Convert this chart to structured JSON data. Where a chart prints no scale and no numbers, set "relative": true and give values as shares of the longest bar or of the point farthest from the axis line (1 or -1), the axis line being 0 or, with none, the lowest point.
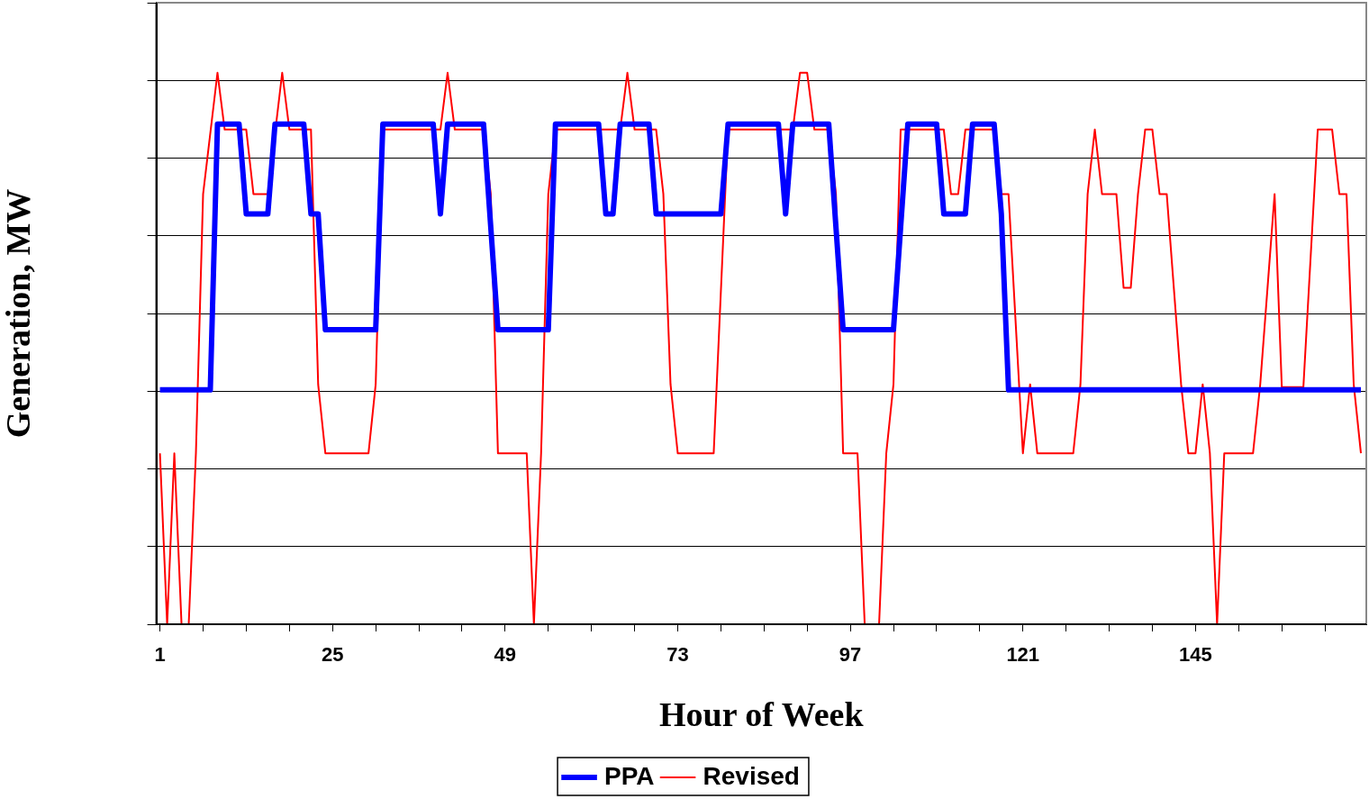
{
  "chart_data": {
    "type": "line",
    "xlabel": "Hour of Week",
    "ylabel": "Generation, MW",
    "relative": true,
    "grid": "y",
    "legend": "bottom",
    "tick_labels": "x",
    "marker": "none",
    "line_style": "solid",
    "xlim": [
      0.5,
      168.75
    ],
    "xticks": [
      1,
      {
        "value": 7,
        "label": null
      },
      {
        "value": 13,
        "label": null
      },
      {
        "value": 19,
        "label": null
      },
      25,
      {
        "value": 31,
        "label": null
      },
      {
        "value": 37,
        "label": null
      },
      {
        "value": 43,
        "label": null
      },
      49,
      {
        "value": 55,
        "label": null
      },
      {
        "value": 61,
        "label": null
      },
      {
        "value": 67,
        "label": null
      },
      73,
      {
        "value": 79,
        "label": null
      },
      {
        "value": 85,
        "label": null
      },
      {
        "value": 91,
        "label": null
      },
      97,
      {
        "value": 103,
        "label": null
      },
      {
        "value": 109,
        "label": null
      },
      {
        "value": 115,
        "label": null
      },
      121,
      {
        "value": 127,
        "label": null
      },
      {
        "value": 133,
        "label": null
      },
      {
        "value": 139,
        "label": null
      },
      145,
      {
        "value": 151,
        "label": null
      },
      {
        "value": 157,
        "label": null
      },
      {
        "value": 163,
        "label": null
      }
    ],
    "series": [
      {
        "name": "PPA",
        "color": "#0000ff",
        "x": [
          1,
          8,
          9,
          12,
          13,
          16,
          17,
          21,
          22,
          23,
          24,
          31,
          32,
          39,
          40,
          41,
          46,
          48,
          55,
          56,
          62,
          63,
          64,
          65,
          69,
          70,
          79,
          80,
          87,
          88,
          89,
          94,
          96,
          103,
          105,
          109,
          110,
          113,
          114,
          117,
          118,
          119,
          168
        ],
        "values": [
          0.425,
          0.425,
          0.907,
          0.907,
          0.744,
          0.744,
          0.907,
          0.907,
          0.744,
          0.744,
          0.534,
          0.534,
          0.907,
          0.907,
          0.744,
          0.907,
          0.907,
          0.534,
          0.534,
          0.907,
          0.907,
          0.744,
          0.744,
          0.907,
          0.907,
          0.744,
          0.744,
          0.907,
          0.907,
          0.744,
          0.907,
          0.907,
          0.534,
          0.534,
          0.907,
          0.907,
          0.744,
          0.744,
          0.907,
          0.907,
          0.744,
          0.425,
          0.425
        ]
      },
      {
        "name": "Revised",
        "color": "#ff0000",
        "x": [
          1,
          2,
          3,
          4,
          5,
          6,
          7,
          9,
          10,
          13,
          14,
          16,
          18,
          19,
          22,
          23,
          24,
          30,
          31,
          32,
          40,
          41,
          42,
          46,
          47,
          48,
          52,
          53,
          54,
          55,
          56,
          65,
          66,
          67,
          70,
          71,
          72,
          73,
          78,
          80,
          89,
          90,
          91,
          92,
          94,
          95,
          96,
          98,
          99,
          101,
          102,
          103,
          104,
          110,
          111,
          112,
          113,
          117,
          118,
          119,
          121,
          122,
          123,
          128,
          129,
          130,
          131,
          132,
          134,
          135,
          136,
          137,
          138,
          139,
          140,
          141,
          143,
          144,
          145,
          146,
          147,
          148,
          149,
          153,
          154,
          156,
          157,
          160,
          162,
          164,
          165,
          166,
          167,
          168
        ],
        "values": [
          0.31,
          0,
          0.31,
          0,
          0,
          0.31,
          0.78,
          1,
          0.897,
          0.897,
          0.78,
          0.78,
          1,
          0.897,
          0.897,
          0.435,
          0.31,
          0.31,
          0.435,
          0.897,
          0.897,
          1,
          0.897,
          0.897,
          0.78,
          0.31,
          0.31,
          0,
          0.31,
          0.78,
          0.897,
          0.897,
          1,
          0.897,
          0.897,
          0.78,
          0.435,
          0.31,
          0.31,
          0.897,
          0.897,
          1,
          1,
          0.897,
          0.897,
          0.78,
          0.31,
          0.31,
          0,
          0,
          0.31,
          0.435,
          0.897,
          0.897,
          0.78,
          0.78,
          0.897,
          0.897,
          0.78,
          0.78,
          0.31,
          0.435,
          0.31,
          0.31,
          0.435,
          0.78,
          0.897,
          0.78,
          0.78,
          0.61,
          0.61,
          0.78,
          0.897,
          0.897,
          0.78,
          0.78,
          0.435,
          0.31,
          0.31,
          0.435,
          0.31,
          0,
          0.31,
          0.31,
          0.435,
          0.78,
          0.43,
          0.43,
          0.897,
          0.897,
          0.78,
          0.78,
          0.435,
          0.31
        ]
      }
    ]
  }
}
